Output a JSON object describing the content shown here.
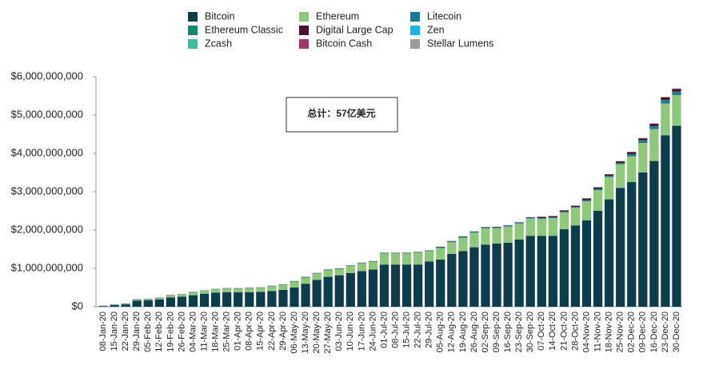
{
  "chart_data": {
    "type": "stacked_bar",
    "annotation": "总计：57亿美元",
    "categories": [
      "08-Jan-20",
      "15-Jan-20",
      "22-Jan-20",
      "29-Jan-20",
      "05-Feb-20",
      "12-Feb-20",
      "19-Feb-20",
      "26-Feb-20",
      "04-Mar-20",
      "11-Mar-20",
      "18-Mar-20",
      "25-Mar-20",
      "01-Apr-20",
      "08-Apr-20",
      "15-Apr-20",
      "22-Apr-20",
      "29-Apr-20",
      "06-May-20",
      "13-May-20",
      "20-May-20",
      "27-May-20",
      "03-Jun-20",
      "10-Jun-20",
      "17-Jun-20",
      "24-Jun-20",
      "01-Jul-20",
      "08-Jul-20",
      "15-Jul-20",
      "22-Jul-20",
      "29-Jul-20",
      "05-Aug-20",
      "12-Aug-20",
      "19-Aug-20",
      "26-Aug-20",
      "02-Sep-20",
      "09-Sep-20",
      "16-Sep-20",
      "23-Sep-20",
      "30-Sep-20",
      "07-Oct-20",
      "14-Oct-20",
      "21-Oct-20",
      "28-Oct-20",
      "04-Nov-20",
      "11-Nov-20",
      "18-Nov-20",
      "25-Nov-20",
      "02-Dec-20",
      "09-Dec-20",
      "16-Dec-20",
      "23-Dec-20",
      "30-Dec-20"
    ],
    "series": [
      {
        "name": "Bitcoin",
        "color": "#0b3d4a",
        "values": [
          10000000.0,
          40000000.0,
          60000000.0,
          160000000.0,
          170000000.0,
          190000000.0,
          240000000.0,
          260000000.0,
          300000000.0,
          340000000.0,
          370000000.0,
          380000000.0,
          380000000.0,
          380000000.0,
          390000000.0,
          410000000.0,
          440000000.0,
          500000000.0,
          600000000.0,
          700000000.0,
          780000000.0,
          820000000.0,
          880000000.0,
          930000000.0,
          970000000.0,
          1100000000.0,
          1100000000.0,
          1100000000.0,
          1100000000.0,
          1180000000.0,
          1230000000.0,
          1380000000.0,
          1450000000.0,
          1550000000.0,
          1620000000.0,
          1650000000.0,
          1670000000.0,
          1750000000.0,
          1850000000.0,
          1850000000.0,
          1850000000.0,
          2020000000.0,
          2120000000.0,
          2250000000.0,
          2500000000.0,
          2800000000.0,
          3100000000.0,
          3250000000.0,
          3500000000.0,
          3800000000.0,
          4470000000.0,
          4720000000.0
        ]
      },
      {
        "name": "Ethereum",
        "color": "#8ec87a",
        "values": [
          0,
          5000000.0,
          10000000.0,
          20000000.0,
          20000000.0,
          30000000.0,
          50000000.0,
          50000000.0,
          70000000.0,
          70000000.0,
          80000000.0,
          90000000.0,
          90000000.0,
          100000000.0,
          100000000.0,
          120000000.0,
          130000000.0,
          150000000.0,
          160000000.0,
          160000000.0,
          170000000.0,
          160000000.0,
          180000000.0,
          200000000.0,
          200000000.0,
          290000000.0,
          290000000.0,
          290000000.0,
          310000000.0,
          270000000.0,
          300000000.0,
          300000000.0,
          350000000.0,
          380000000.0,
          420000000.0,
          400000000.0,
          420000000.0,
          420000000.0,
          450000000.0,
          440000000.0,
          460000000.0,
          440000000.0,
          460000000.0,
          500000000.0,
          540000000.0,
          580000000.0,
          620000000.0,
          670000000.0,
          770000000.0,
          830000000.0,
          830000000.0,
          800000000.0
        ]
      },
      {
        "name": "Litecoin",
        "color": "#1a7a96",
        "values": [
          5000000.0,
          5000000.0,
          5000000.0,
          5000000.0,
          5000000.0,
          5000000.0,
          5000000.0,
          5000000.0,
          5000000.0,
          5000000.0,
          5000000.0,
          5000000.0,
          5000000.0,
          5000000.0,
          5000000.0,
          5000000.0,
          5000000.0,
          10000000.0,
          10000000.0,
          10000000.0,
          10000000.0,
          10000000.0,
          10000000.0,
          10000000.0,
          10000000.0,
          10000000.0,
          10000000.0,
          10000000.0,
          10000000.0,
          10000000.0,
          20000000.0,
          20000000.0,
          20000000.0,
          20000000.0,
          20000000.0,
          20000000.0,
          20000000.0,
          20000000.0,
          20000000.0,
          20000000.0,
          20000000.0,
          20000000.0,
          20000000.0,
          30000000.0,
          30000000.0,
          30000000.0,
          30000000.0,
          50000000.0,
          60000000.0,
          70000000.0,
          80000000.0,
          80000000.0
        ]
      },
      {
        "name": "Ethereum Classic",
        "color": "#0f8a70",
        "values": [
          3000000.0,
          3000000.0,
          3000000.0,
          3000000.0,
          3000000.0,
          3000000.0,
          3000000.0,
          3000000.0,
          3000000.0,
          3000000.0,
          3000000.0,
          3000000.0,
          3000000.0,
          3000000.0,
          3000000.0,
          3000000.0,
          3000000.0,
          3000000.0,
          3000000.0,
          3000000.0,
          3000000.0,
          3000000.0,
          3000000.0,
          3000000.0,
          3000000.0,
          3000000.0,
          3000000.0,
          3000000.0,
          3000000.0,
          3000000.0,
          3000000.0,
          3000000.0,
          3000000.0,
          3000000.0,
          3000000.0,
          3000000.0,
          3000000.0,
          3000000.0,
          3000000.0,
          3000000.0,
          3000000.0,
          3000000.0,
          3000000.0,
          3000000.0,
          3000000.0,
          3000000.0,
          3000000.0,
          10000000.0,
          10000000.0,
          10000000.0,
          10000000.0,
          10000000.0
        ]
      },
      {
        "name": "Digital Large Cap",
        "color": "#4a1030",
        "values": [
          5000000.0,
          5000000.0,
          5000000.0,
          5000000.0,
          5000000.0,
          5000000.0,
          5000000.0,
          5000000.0,
          5000000.0,
          5000000.0,
          5000000.0,
          5000000.0,
          5000000.0,
          5000000.0,
          5000000.0,
          5000000.0,
          5000000.0,
          5000000.0,
          5000000.0,
          5000000.0,
          5000000.0,
          5000000.0,
          5000000.0,
          5000000.0,
          5000000.0,
          5000000.0,
          5000000.0,
          5000000.0,
          5000000.0,
          5000000.0,
          10000000.0,
          10000000.0,
          10000000.0,
          10000000.0,
          10000000.0,
          10000000.0,
          10000000.0,
          10000000.0,
          10000000.0,
          30000000.0,
          30000000.0,
          30000000.0,
          30000000.0,
          40000000.0,
          40000000.0,
          40000000.0,
          40000000.0,
          50000000.0,
          50000000.0,
          60000000.0,
          70000000.0,
          70000000.0
        ]
      },
      {
        "name": "Zen",
        "color": "#19b4e6",
        "values": [
          1000000.0,
          1000000.0,
          1000000.0,
          1000000.0,
          1000000.0,
          1000000.0,
          1000000.0,
          1000000.0,
          1000000.0,
          1000000.0,
          1000000.0,
          1000000.0,
          1000000.0,
          1000000.0,
          1000000.0,
          1000000.0,
          1000000.0,
          1000000.0,
          1000000.0,
          1000000.0,
          1000000.0,
          1000000.0,
          1000000.0,
          1000000.0,
          1000000.0,
          1000000.0,
          1000000.0,
          1000000.0,
          1000000.0,
          1000000.0,
          1000000.0,
          1000000.0,
          1000000.0,
          1000000.0,
          1000000.0,
          1000000.0,
          1000000.0,
          1000000.0,
          1000000.0,
          1000000.0,
          1000000.0,
          1000000.0,
          1000000.0,
          1000000.0,
          1000000.0,
          1000000.0,
          1000000.0,
          1000000.0,
          1000000.0,
          1000000.0,
          1000000.0,
          1000000.0
        ]
      },
      {
        "name": "Zcash",
        "color": "#3dbfa0",
        "values": [
          1000000.0,
          1000000.0,
          1000000.0,
          1000000.0,
          1000000.0,
          1000000.0,
          1000000.0,
          1000000.0,
          1000000.0,
          1000000.0,
          1000000.0,
          1000000.0,
          1000000.0,
          1000000.0,
          1000000.0,
          1000000.0,
          1000000.0,
          1000000.0,
          1000000.0,
          1000000.0,
          1000000.0,
          1000000.0,
          1000000.0,
          1000000.0,
          1000000.0,
          1000000.0,
          1000000.0,
          1000000.0,
          1000000.0,
          1000000.0,
          1000000.0,
          1000000.0,
          1000000.0,
          1000000.0,
          1000000.0,
          1000000.0,
          1000000.0,
          1000000.0,
          1000000.0,
          1000000.0,
          1000000.0,
          1000000.0,
          1000000.0,
          1000000.0,
          1000000.0,
          1000000.0,
          1000000.0,
          1000000.0,
          1000000.0,
          1000000.0,
          1000000.0,
          1000000.0
        ]
      },
      {
        "name": "Bitcoin Cash",
        "color": "#a3356b",
        "values": [
          2000000.0,
          2000000.0,
          2000000.0,
          2000000.0,
          2000000.0,
          2000000.0,
          2000000.0,
          2000000.0,
          2000000.0,
          2000000.0,
          2000000.0,
          2000000.0,
          2000000.0,
          2000000.0,
          2000000.0,
          2000000.0,
          2000000.0,
          2000000.0,
          2000000.0,
          2000000.0,
          2000000.0,
          2000000.0,
          2000000.0,
          2000000.0,
          2000000.0,
          2000000.0,
          2000000.0,
          2000000.0,
          2000000.0,
          2000000.0,
          2000000.0,
          2000000.0,
          2000000.0,
          2000000.0,
          2000000.0,
          2000000.0,
          2000000.0,
          2000000.0,
          2000000.0,
          2000000.0,
          2000000.0,
          2000000.0,
          2000000.0,
          2000000.0,
          2000000.0,
          2000000.0,
          2000000.0,
          8000000.0,
          8000000.0,
          8000000.0,
          8000000.0,
          8000000.0
        ]
      },
      {
        "name": "Stellar Lumens",
        "color": "#9c9c9c",
        "values": [
          1000000.0,
          1000000.0,
          1000000.0,
          1000000.0,
          1000000.0,
          1000000.0,
          1000000.0,
          1000000.0,
          1000000.0,
          1000000.0,
          1000000.0,
          1000000.0,
          1000000.0,
          1000000.0,
          1000000.0,
          1000000.0,
          1000000.0,
          1000000.0,
          1000000.0,
          1000000.0,
          1000000.0,
          1000000.0,
          1000000.0,
          1000000.0,
          1000000.0,
          1000000.0,
          1000000.0,
          1000000.0,
          1000000.0,
          1000000.0,
          1000000.0,
          1000000.0,
          1000000.0,
          1000000.0,
          1000000.0,
          1000000.0,
          1000000.0,
          1000000.0,
          1000000.0,
          1000000.0,
          1000000.0,
          1000000.0,
          1000000.0,
          1000000.0,
          1000000.0,
          1000000.0,
          1000000.0,
          1000000.0,
          1000000.0,
          1000000.0,
          1000000.0,
          1000000.0
        ]
      }
    ],
    "ylim": [
      0,
      6000000000
    ],
    "yticks": [
      {
        "value": 0,
        "label": "$0"
      },
      {
        "value": 1000000000,
        "label": "$1,000,000,000"
      },
      {
        "value": 2000000000,
        "label": "$2,000,000,000"
      },
      {
        "value": 3000000000,
        "label": "$3,000,000,000"
      },
      {
        "value": 4000000000,
        "label": "$4,000,000,000"
      },
      {
        "value": 5000000000,
        "label": "$5,000,000,000"
      },
      {
        "value": 6000000000,
        "label": "$6,000,000,000"
      }
    ],
    "grid": false,
    "legend": "top"
  }
}
